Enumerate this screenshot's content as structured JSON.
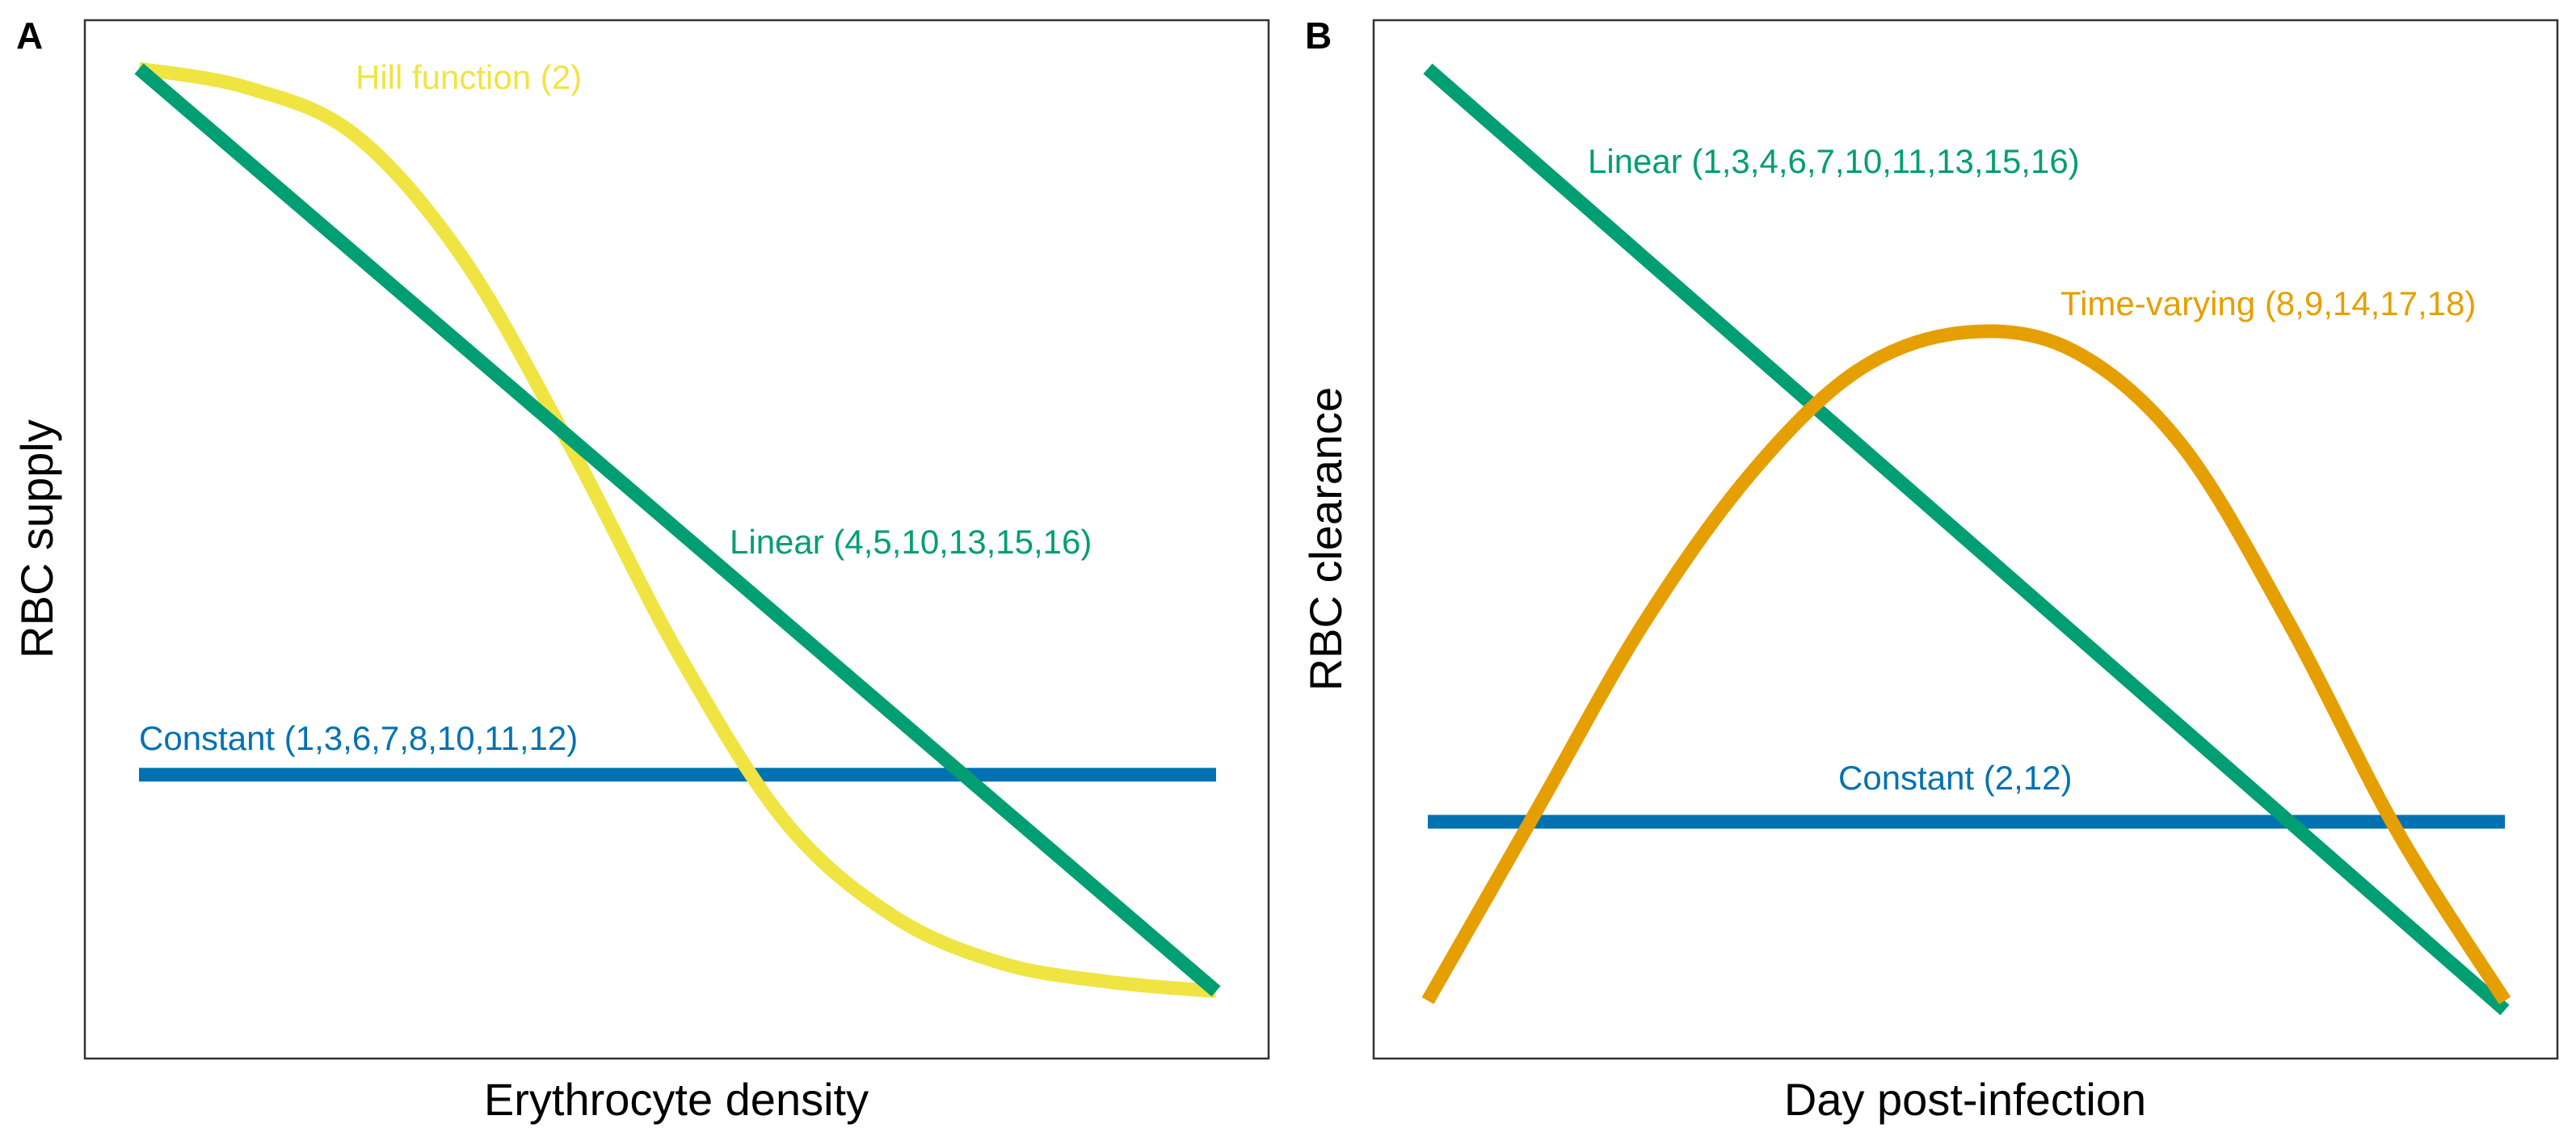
{
  "chart_data": [
    {
      "panel": "A",
      "type": "line",
      "xlabel": "Erythrocyte density",
      "ylabel": "RBC supply",
      "x_ticks_shown": false,
      "y_ticks_shown": false,
      "grid": false,
      "xlim": [
        0,
        1
      ],
      "ylim": [
        0,
        1
      ],
      "series": [
        {
          "name": "Hill function (2)",
          "color": "#F0E442",
          "shape": "hill",
          "x": [
            0,
            0.1,
            0.2,
            0.3,
            0.4,
            0.5,
            0.6,
            0.7,
            0.8,
            0.9,
            1.0
          ],
          "y": [
            1.0,
            0.98,
            0.93,
            0.8,
            0.6,
            0.38,
            0.2,
            0.1,
            0.05,
            0.03,
            0.02
          ]
        },
        {
          "name": "Linear (4,5,10,13,15,16)",
          "color": "#009E73",
          "shape": "line",
          "x": [
            0,
            1
          ],
          "y": [
            1.0,
            0.02
          ]
        },
        {
          "name": "Constant (1,3,6,7,8,10,11,12)",
          "color": "#0072B2",
          "shape": "line",
          "x": [
            0,
            1
          ],
          "y": [
            0.25,
            0.25
          ]
        }
      ]
    },
    {
      "panel": "B",
      "type": "line",
      "xlabel": "Day post-infection",
      "ylabel": "RBC clearance",
      "x_ticks_shown": false,
      "y_ticks_shown": false,
      "grid": false,
      "xlim": [
        0,
        1
      ],
      "ylim": [
        0,
        1
      ],
      "series": [
        {
          "name": "Linear (1,3,4,6,7,10,11,13,15,16)",
          "color": "#009E73",
          "shape": "line",
          "x": [
            0,
            1
          ],
          "y": [
            1.0,
            0.0
          ]
        },
        {
          "name": "Time-varying (8,9,14,17,18)",
          "color": "#E69F00",
          "shape": "hump",
          "x": [
            0,
            0.1,
            0.2,
            0.3,
            0.4,
            0.5,
            0.6,
            0.7,
            0.8,
            0.9,
            1.0
          ],
          "y": [
            0.01,
            0.21,
            0.41,
            0.57,
            0.68,
            0.72,
            0.7,
            0.6,
            0.41,
            0.19,
            0.01
          ]
        },
        {
          "name": "Constant (2,12)",
          "color": "#0072B2",
          "shape": "line",
          "x": [
            0,
            1
          ],
          "y": [
            0.2,
            0.2
          ]
        }
      ]
    }
  ]
}
